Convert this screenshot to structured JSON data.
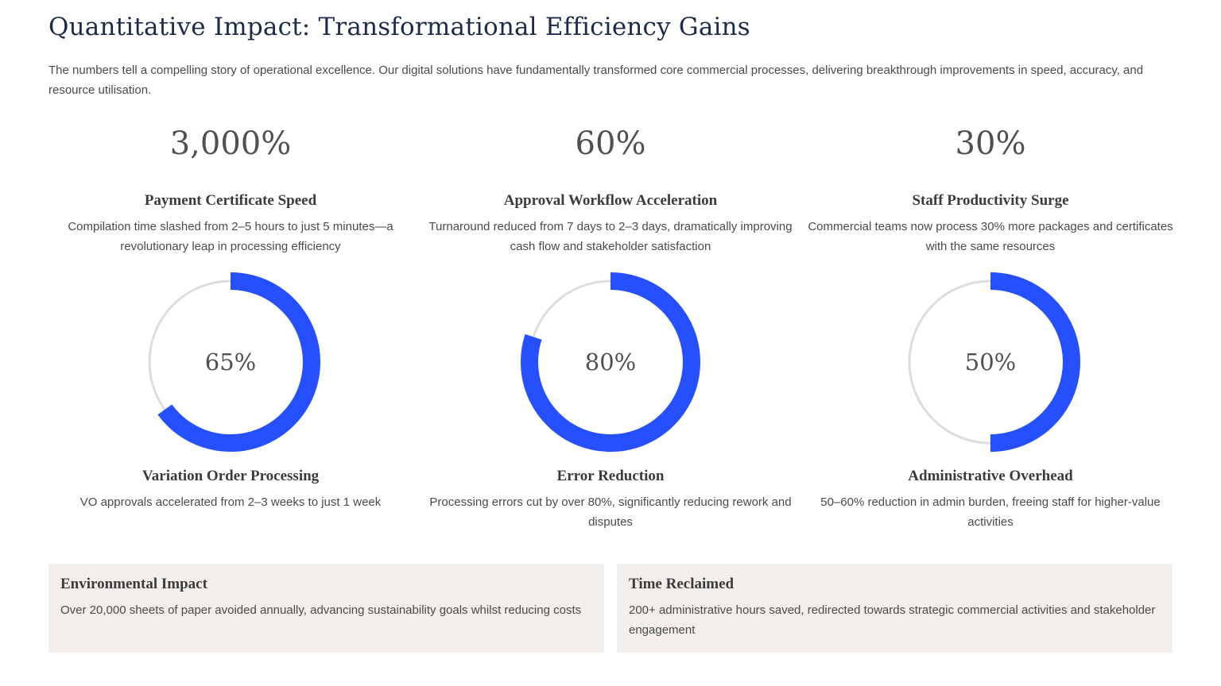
{
  "header": {
    "title": "Quantitative Impact: Transformational Efficiency Gains",
    "intro": "The numbers tell a compelling story of operational excellence. Our digital solutions have fundamentally transformed core commercial processes, delivering breakthrough improvements in speed, accuracy, and resource utilisation."
  },
  "stats": [
    {
      "value": "3,000%",
      "title": "Payment Certificate Speed",
      "description": "Compilation time slashed from 2–5 hours to just 5 minutes—a revolutionary leap in processing efficiency"
    },
    {
      "value": "60%",
      "title": "Approval Workflow Acceleration",
      "description": "Turnaround reduced from 7 days to 2–3 days, dramatically improving cash flow and stakeholder satisfaction"
    },
    {
      "value": "30%",
      "title": "Staff Productivity Surge",
      "description": "Commercial teams now process 30% more packages and certificates with the same resources"
    }
  ],
  "rings": [
    {
      "percent": 65,
      "label": "65%",
      "title": "Variation Order Processing",
      "description": "VO approvals accelerated from 2–3 weeks to just 1 week"
    },
    {
      "percent": 80,
      "label": "80%",
      "title": "Error Reduction",
      "description": "Processing errors cut by over 80%, significantly reducing rework and disputes"
    },
    {
      "percent": 50,
      "label": "50%",
      "title": "Administrative Overhead",
      "description": "50–60% reduction in admin burden, freeing staff for higher-value activities"
    }
  ],
  "cards": [
    {
      "title": "Environmental Impact",
      "description": "Over 20,000 sheets of paper avoided annually, advancing sustainability goals whilst reducing costs"
    },
    {
      "title": "Time Reclaimed",
      "description": "200+ administrative hours saved, redirected towards strategic commercial activities and stakeholder engagement"
    }
  ],
  "colors": {
    "ring_fill": "#2650ff",
    "ring_track": "#dddddd",
    "title": "#1d2b4a",
    "card_bg": "#f1eeec"
  }
}
